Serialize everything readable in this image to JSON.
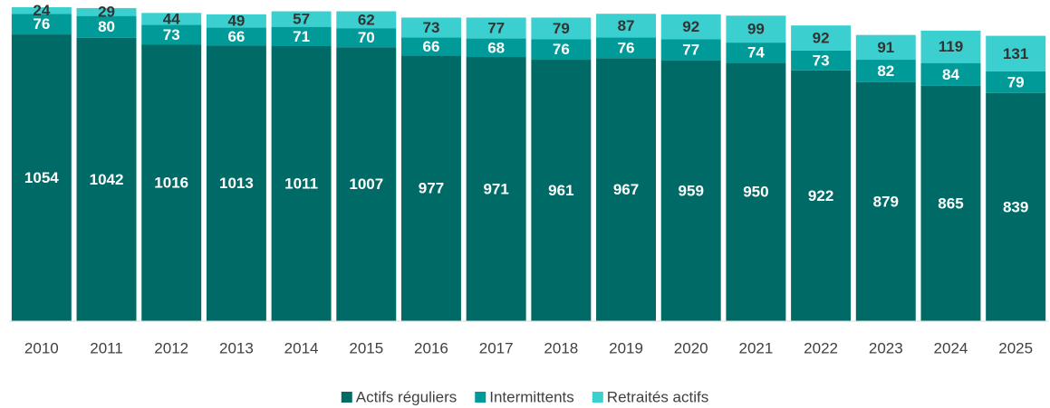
{
  "chart_data": {
    "type": "stacked_bar",
    "categories": [
      "2010",
      "2011",
      "2012",
      "2013",
      "2014",
      "2015",
      "2016",
      "2017",
      "2018",
      "2019",
      "2020",
      "2021",
      "2022",
      "2023",
      "2024",
      "2025"
    ],
    "series": [
      {
        "name": "Actifs réguliers",
        "color": "#006a66",
        "label_color": "#ffffff",
        "values": [
          1054,
          1042,
          1016,
          1013,
          1011,
          1007,
          977,
          971,
          961,
          967,
          959,
          950,
          922,
          879,
          865,
          839
        ]
      },
      {
        "name": "Intermittents",
        "color": "#009a98",
        "label_color": "#ffffff",
        "values": [
          76,
          80,
          73,
          66,
          71,
          70,
          66,
          68,
          76,
          76,
          77,
          74,
          73,
          82,
          84,
          79
        ]
      },
      {
        "name": "Retraités actifs",
        "color": "#3ccfcf",
        "label_color": "#333333",
        "values": [
          24,
          29,
          44,
          49,
          57,
          62,
          73,
          77,
          79,
          87,
          92,
          99,
          92,
          91,
          119,
          131
        ]
      }
    ],
    "legend": "bottom"
  }
}
